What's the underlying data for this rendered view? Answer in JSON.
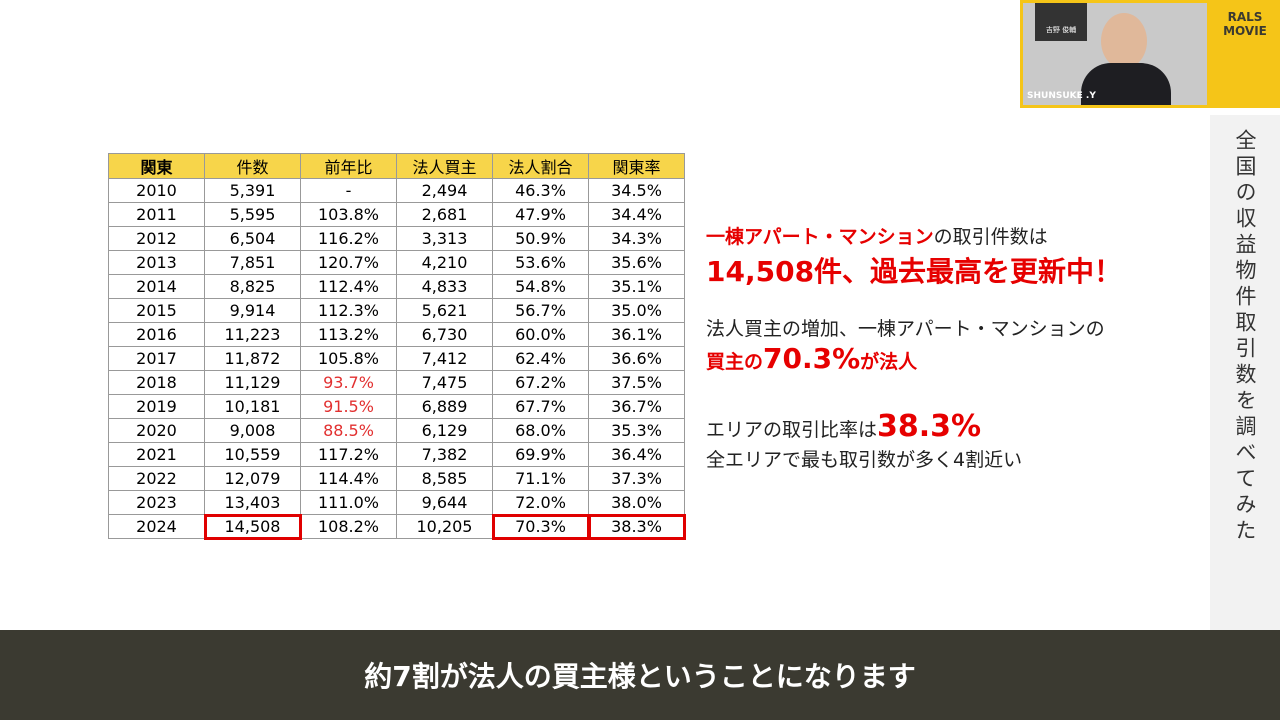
{
  "table": {
    "header": [
      "関東",
      "件数",
      "前年比",
      "法人買主",
      "法人割合",
      "関東率"
    ],
    "rows": [
      [
        "2010",
        "5,391",
        "-",
        "2,494",
        "46.3%",
        "34.5%"
      ],
      [
        "2011",
        "5,595",
        "103.8%",
        "2,681",
        "47.9%",
        "34.4%"
      ],
      [
        "2012",
        "6,504",
        "116.2%",
        "3,313",
        "50.9%",
        "34.3%"
      ],
      [
        "2013",
        "7,851",
        "120.7%",
        "4,210",
        "53.6%",
        "35.6%"
      ],
      [
        "2014",
        "8,825",
        "112.4%",
        "4,833",
        "54.8%",
        "35.1%"
      ],
      [
        "2015",
        "9,914",
        "112.3%",
        "5,621",
        "56.7%",
        "35.0%"
      ],
      [
        "2016",
        "11,223",
        "113.2%",
        "6,730",
        "60.0%",
        "36.1%"
      ],
      [
        "2017",
        "11,872",
        "105.8%",
        "7,412",
        "62.4%",
        "36.6%"
      ],
      [
        "2018",
        "11,129",
        "93.7%",
        "7,475",
        "67.2%",
        "37.5%"
      ],
      [
        "2019",
        "10,181",
        "91.5%",
        "6,889",
        "67.7%",
        "36.7%"
      ],
      [
        "2020",
        "9,008",
        "88.5%",
        "6,129",
        "68.0%",
        "35.3%"
      ],
      [
        "2021",
        "10,559",
        "117.2%",
        "7,382",
        "69.9%",
        "36.4%"
      ],
      [
        "2022",
        "12,079",
        "114.4%",
        "8,585",
        "71.1%",
        "37.3%"
      ],
      [
        "2023",
        "13,403",
        "111.0%",
        "9,644",
        "72.0%",
        "38.0%"
      ],
      [
        "2024",
        "14,508",
        "108.2%",
        "10,205",
        "70.3%",
        "38.3%"
      ]
    ]
  },
  "notes": [
    {
      "a": "一棟アパート・マンション",
      "b": "の取引件数は",
      "c": "14,508件、過去最高を更新中！"
    },
    {
      "a": "法人買主の増加、一棟アパート・マンションの",
      "b": "買主の",
      "c": "70.3%",
      "d": "が法人"
    },
    {
      "a": "エリアの取引比率は",
      "b": "38.3%",
      "c": "全エリアで最も取引数が多く4割近い"
    }
  ],
  "sidebar": {
    "title": "全国の収益物件取引数を調べてみた"
  },
  "webcam": {
    "name": "SHUNSUKE .Y",
    "sign": "吉野 俊輔"
  },
  "logo": {
    "line1": "RALS",
    "line2": "MOVIE"
  },
  "caption": "約7割が法人の買主様ということになります"
}
